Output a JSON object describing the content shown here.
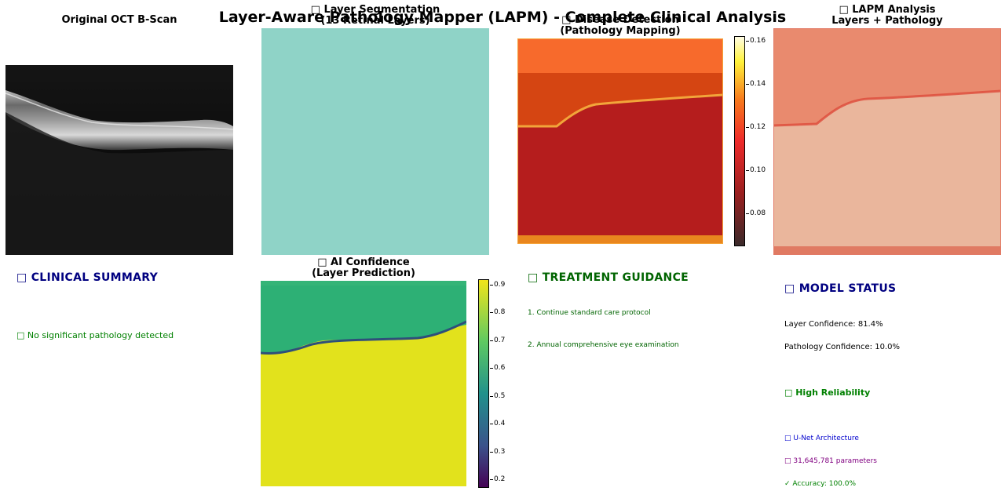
{
  "figure": {
    "title": "Layer-Aware Pathology Mapper (LAPM) - Complete Clinical Analysis"
  },
  "panels": {
    "original": {
      "title": "Original OCT B-Scan"
    },
    "segmentation": {
      "title_line1": "□ Layer Segmentation",
      "title_line2": "(13 Retinal Layers)"
    },
    "disease": {
      "title_line1": "□ Disease Detection",
      "title_line2": "(Pathology Mapping)",
      "colorbar_ticks": [
        "0.16",
        "0.14",
        "0.12",
        "0.10",
        "0.08"
      ]
    },
    "lapm": {
      "title_line1": "□ LAPM Analysis",
      "title_line2": "Layers + Pathology"
    },
    "confidence": {
      "title_line1": "□ AI Confidence",
      "title_line2": "(Layer Prediction)",
      "colorbar_ticks": [
        "0.9",
        "0.8",
        "0.7",
        "0.6",
        "0.5",
        "0.4",
        "0.3",
        "0.2"
      ]
    }
  },
  "clinical_summary": {
    "heading": "□ CLINICAL SUMMARY",
    "finding": "□ No significant pathology detected"
  },
  "treatment": {
    "heading": "□ TREATMENT GUIDANCE",
    "items": [
      "1. Continue standard care protocol",
      "2. Annual comprehensive eye examination"
    ]
  },
  "model_status": {
    "heading": "□ MODEL STATUS",
    "layer_confidence": "Layer Confidence: 81.4%",
    "pathology_confidence": "Pathology Confidence: 10.0%",
    "reliability": "□ High Reliability",
    "architecture": "□ U-Net Architecture",
    "parameters": "□ 31,645,781 parameters",
    "accuracy": "✓ Accuracy: 100.0%"
  },
  "colors": {
    "navy": "#000080",
    "dark_green": "#006400",
    "green": "#008000",
    "blue": "#0000cd",
    "purple": "#800080",
    "segmentation_fill": "#8fd3c7"
  }
}
